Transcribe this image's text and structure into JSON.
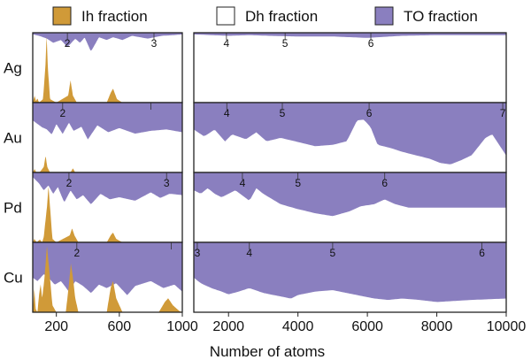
{
  "chart_data": {
    "type": "area",
    "xlabel": "Number of atoms",
    "colors": {
      "ih": "#d09a38",
      "dh": "#ffffff",
      "to": "#8a7fbf",
      "frame": "#222222"
    },
    "legend": [
      {
        "key": "ih",
        "label": "Ih fraction"
      },
      {
        "key": "dh",
        "label": "Dh fraction"
      },
      {
        "key": "to",
        "label": "TO fraction"
      }
    ],
    "left_panel": {
      "xlim": [
        50,
        1000
      ],
      "xticks": [
        200,
        600,
        1000
      ],
      "tick_labels": [
        "200",
        "600",
        "1000"
      ]
    },
    "right_panel": {
      "xlim": [
        1000,
        10000
      ],
      "xticks": [
        2000,
        4000,
        6000,
        8000,
        10000
      ],
      "tick_labels": [
        "2000",
        "4000",
        "6000",
        "8000",
        "10000"
      ]
    },
    "rows": [
      {
        "metal": "Ag",
        "ih": [
          [
            50,
            0
          ],
          [
            62,
            0.1
          ],
          [
            70,
            0.02
          ],
          [
            80,
            0.06
          ],
          [
            90,
            0
          ],
          [
            115,
            0.05
          ],
          [
            130,
            0.5
          ],
          [
            138,
            0.95
          ],
          [
            146,
            0.5
          ],
          [
            160,
            0.05
          ],
          [
            200,
            0
          ],
          [
            275,
            0.1
          ],
          [
            290,
            0.32
          ],
          [
            305,
            0.1
          ],
          [
            330,
            0
          ],
          [
            520,
            0
          ],
          [
            545,
            0.14
          ],
          [
            560,
            0.2
          ],
          [
            585,
            0.05
          ],
          [
            620,
            0
          ],
          [
            1000,
            0
          ]
        ],
        "to_left": [
          [
            50,
            0.02
          ],
          [
            90,
            0.04
          ],
          [
            115,
            0.06
          ],
          [
            140,
            0.08
          ],
          [
            180,
            0.14
          ],
          [
            230,
            0.1
          ],
          [
            270,
            0.2
          ],
          [
            320,
            0.08
          ],
          [
            350,
            0.14
          ],
          [
            380,
            0.06
          ],
          [
            420,
            0.26
          ],
          [
            470,
            0.06
          ],
          [
            520,
            0.1
          ],
          [
            560,
            0.06
          ],
          [
            620,
            0.1
          ],
          [
            680,
            0.04
          ],
          [
            780,
            0.08
          ],
          [
            870,
            0.04
          ],
          [
            950,
            0.03
          ],
          [
            1000,
            0.02
          ]
        ],
        "to_right": [
          [
            1000,
            0.02
          ],
          [
            1500,
            0.03
          ],
          [
            2000,
            0.04
          ],
          [
            2600,
            0.03
          ],
          [
            3200,
            0.04
          ],
          [
            4000,
            0.05
          ],
          [
            5000,
            0.05
          ],
          [
            6000,
            0.07
          ],
          [
            7000,
            0.04
          ],
          [
            8000,
            0.03
          ],
          [
            9000,
            0.03
          ],
          [
            10000,
            0.03
          ]
        ],
        "left_magic": [
          {
            "x": 270,
            "label": "2"
          },
          {
            "x": 820,
            "label": "3"
          }
        ],
        "right_magic": [
          {
            "x": 1940,
            "label": "4"
          },
          {
            "x": 3630,
            "label": "5"
          },
          {
            "x": 6100,
            "label": "6"
          }
        ]
      },
      {
        "metal": "Au",
        "ih": [
          [
            50,
            0
          ],
          [
            62,
            0.05
          ],
          [
            72,
            0
          ],
          [
            90,
            0
          ],
          [
            100,
            0.02
          ],
          [
            120,
            0.08
          ],
          [
            132,
            0.24
          ],
          [
            142,
            0.08
          ],
          [
            160,
            0
          ],
          [
            290,
            0
          ],
          [
            305,
            0.06
          ],
          [
            320,
            0
          ],
          [
            1000,
            0
          ]
        ],
        "to_left": [
          [
            50,
            0.25
          ],
          [
            80,
            0.3
          ],
          [
            110,
            0.35
          ],
          [
            140,
            0.38
          ],
          [
            170,
            0.45
          ],
          [
            200,
            0.3
          ],
          [
            240,
            0.44
          ],
          [
            280,
            0.28
          ],
          [
            310,
            0.4
          ],
          [
            360,
            0.34
          ],
          [
            400,
            0.52
          ],
          [
            460,
            0.32
          ],
          [
            530,
            0.42
          ],
          [
            600,
            0.36
          ],
          [
            700,
            0.44
          ],
          [
            800,
            0.4
          ],
          [
            900,
            0.38
          ],
          [
            1000,
            0.42
          ]
        ],
        "to_right": [
          [
            1000,
            0.38
          ],
          [
            1300,
            0.48
          ],
          [
            1600,
            0.38
          ],
          [
            1900,
            0.55
          ],
          [
            2100,
            0.45
          ],
          [
            2500,
            0.52
          ],
          [
            2800,
            0.42
          ],
          [
            3100,
            0.55
          ],
          [
            3500,
            0.5
          ],
          [
            4000,
            0.56
          ],
          [
            4500,
            0.62
          ],
          [
            5000,
            0.6
          ],
          [
            5400,
            0.55
          ],
          [
            5700,
            0.25
          ],
          [
            5900,
            0.24
          ],
          [
            6100,
            0.35
          ],
          [
            6300,
            0.6
          ],
          [
            6700,
            0.65
          ],
          [
            7000,
            0.7
          ],
          [
            7400,
            0.75
          ],
          [
            7800,
            0.8
          ],
          [
            8100,
            0.86
          ],
          [
            8400,
            0.88
          ],
          [
            8700,
            0.82
          ],
          [
            9000,
            0.75
          ],
          [
            9400,
            0.5
          ],
          [
            9600,
            0.45
          ],
          [
            9800,
            0.6
          ],
          [
            10000,
            0.75
          ]
        ],
        "left_magic": [
          {
            "x": 240,
            "label": "2"
          },
          {
            "x": 800,
            "label": ""
          }
        ],
        "right_magic": [
          {
            "x": 1950,
            "label": "4"
          },
          {
            "x": 3550,
            "label": "5"
          },
          {
            "x": 6050,
            "label": "6"
          },
          {
            "x": 9900,
            "label": "7"
          }
        ]
      },
      {
        "metal": "Pd",
        "ih": [
          [
            50,
            0
          ],
          [
            60,
            0.05
          ],
          [
            75,
            0
          ],
          [
            95,
            0.04
          ],
          [
            110,
            0
          ],
          [
            120,
            0.08
          ],
          [
            140,
            0.5
          ],
          [
            150,
            0.8
          ],
          [
            160,
            0.5
          ],
          [
            175,
            0.05
          ],
          [
            200,
            0
          ],
          [
            285,
            0.1
          ],
          [
            300,
            0.2
          ],
          [
            315,
            0.1
          ],
          [
            340,
            0
          ],
          [
            520,
            0
          ],
          [
            545,
            0.1
          ],
          [
            560,
            0.14
          ],
          [
            580,
            0.05
          ],
          [
            620,
            0
          ],
          [
            1000,
            0
          ]
        ],
        "to_left": [
          [
            50,
            0.06
          ],
          [
            90,
            0.15
          ],
          [
            120,
            0.25
          ],
          [
            150,
            0.18
          ],
          [
            180,
            0.3
          ],
          [
            210,
            0.2
          ],
          [
            250,
            0.42
          ],
          [
            290,
            0.25
          ],
          [
            330,
            0.38
          ],
          [
            370,
            0.32
          ],
          [
            420,
            0.45
          ],
          [
            480,
            0.3
          ],
          [
            540,
            0.38
          ],
          [
            600,
            0.35
          ],
          [
            700,
            0.4
          ],
          [
            800,
            0.28
          ],
          [
            860,
            0.36
          ],
          [
            920,
            0.3
          ],
          [
            1000,
            0.32
          ]
        ],
        "to_right": [
          [
            1000,
            0.25
          ],
          [
            1200,
            0.3
          ],
          [
            1400,
            0.22
          ],
          [
            1600,
            0.3
          ],
          [
            1800,
            0.35
          ],
          [
            2000,
            0.3
          ],
          [
            2200,
            0.25
          ],
          [
            2600,
            0.4
          ],
          [
            2800,
            0.22
          ],
          [
            3000,
            0.3
          ],
          [
            3500,
            0.45
          ],
          [
            4000,
            0.52
          ],
          [
            4500,
            0.58
          ],
          [
            5000,
            0.62
          ],
          [
            5500,
            0.55
          ],
          [
            5800,
            0.48
          ],
          [
            6200,
            0.45
          ],
          [
            6500,
            0.38
          ],
          [
            6800,
            0.45
          ],
          [
            7200,
            0.5
          ],
          [
            8000,
            0.5
          ],
          [
            9000,
            0.5
          ],
          [
            10000,
            0.5
          ]
        ],
        "left_magic": [
          {
            "x": 280,
            "label": "2"
          },
          {
            "x": 900,
            "label": "3"
          }
        ],
        "right_magic": [
          {
            "x": 2400,
            "label": "4"
          },
          {
            "x": 4000,
            "label": "5"
          },
          {
            "x": 6500,
            "label": "6"
          }
        ]
      },
      {
        "metal": "Cu",
        "ih": [
          [
            50,
            0
          ],
          [
            60,
            0.35
          ],
          [
            68,
            0.05
          ],
          [
            80,
            0
          ],
          [
            90,
            0.25
          ],
          [
            100,
            0.4
          ],
          [
            110,
            0.2
          ],
          [
            125,
            0.5
          ],
          [
            140,
            0.95
          ],
          [
            155,
            0.6
          ],
          [
            175,
            0.1
          ],
          [
            200,
            0
          ],
          [
            260,
            0
          ],
          [
            280,
            0.4
          ],
          [
            292,
            0.7
          ],
          [
            305,
            0.5
          ],
          [
            320,
            0.2
          ],
          [
            340,
            0
          ],
          [
            520,
            0
          ],
          [
            545,
            0.35
          ],
          [
            560,
            0.45
          ],
          [
            580,
            0.2
          ],
          [
            620,
            0
          ],
          [
            850,
            0
          ],
          [
            890,
            0.15
          ],
          [
            910,
            0.2
          ],
          [
            940,
            0.1
          ],
          [
            980,
            0.02
          ],
          [
            1000,
            0
          ]
        ],
        "to_left": [
          [
            50,
            0.5
          ],
          [
            80,
            0.55
          ],
          [
            120,
            0.45
          ],
          [
            150,
            0.5
          ],
          [
            190,
            0.6
          ],
          [
            230,
            0.55
          ],
          [
            280,
            0.7
          ],
          [
            320,
            0.55
          ],
          [
            370,
            0.62
          ],
          [
            420,
            0.72
          ],
          [
            470,
            0.6
          ],
          [
            520,
            0.65
          ],
          [
            580,
            0.58
          ],
          [
            650,
            0.75
          ],
          [
            700,
            0.62
          ],
          [
            800,
            0.55
          ],
          [
            880,
            0.65
          ],
          [
            950,
            0.6
          ],
          [
            1000,
            0.7
          ]
        ],
        "to_right": [
          [
            1000,
            0.5
          ],
          [
            1200,
            0.58
          ],
          [
            1500,
            0.65
          ],
          [
            1800,
            0.7
          ],
          [
            2000,
            0.74
          ],
          [
            2300,
            0.7
          ],
          [
            2600,
            0.65
          ],
          [
            3000,
            0.72
          ],
          [
            3400,
            0.76
          ],
          [
            3800,
            0.8
          ],
          [
            4000,
            0.75
          ],
          [
            4500,
            0.7
          ],
          [
            5000,
            0.68
          ],
          [
            5400,
            0.72
          ],
          [
            5800,
            0.76
          ],
          [
            6200,
            0.8
          ],
          [
            6600,
            0.82
          ],
          [
            7000,
            0.8
          ],
          [
            7500,
            0.82
          ],
          [
            8000,
            0.85
          ],
          [
            9000,
            0.82
          ],
          [
            10000,
            0.8
          ]
        ],
        "left_magic": [
          {
            "x": 330,
            "label": "2"
          },
          {
            "x": 930,
            "label": ""
          }
        ],
        "right_magic": [
          {
            "x": 1100,
            "label": "3"
          },
          {
            "x": 2600,
            "label": "4"
          },
          {
            "x": 5000,
            "label": "5"
          },
          {
            "x": 9300,
            "label": "6"
          }
        ]
      }
    ]
  }
}
